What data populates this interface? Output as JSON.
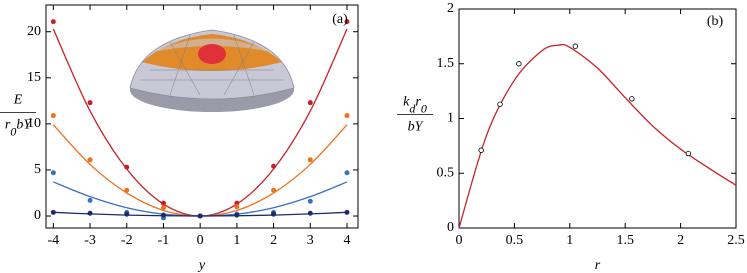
{
  "chart_data": [
    {
      "type": "scatter",
      "panel_label": "(a)",
      "x_label": "y",
      "y_label": {
        "numerator": [
          "E"
        ],
        "denominator": [
          "r",
          "0",
          "bY"
        ]
      },
      "xlim": [
        -4.2,
        4.3
      ],
      "ylim": [
        -1.3,
        22.9
      ],
      "xticks": [
        -4,
        -3,
        -2,
        -1,
        0,
        1,
        2,
        3,
        4
      ],
      "yticks": [
        0,
        5,
        10,
        15,
        20
      ],
      "x": [
        -4,
        -3,
        -2,
        -1,
        0,
        1,
        2,
        3,
        4
      ],
      "series": [
        {
          "color": "#c8202a",
          "values": [
            21.1,
            12.3,
            5.3,
            1.4,
            0,
            1.4,
            5.4,
            12.3,
            21.1
          ],
          "fit": [
            20.3,
            11.4,
            5.1,
            1.3,
            0,
            1.3,
            5.1,
            11.4,
            20.3
          ]
        },
        {
          "color": "#f0701e",
          "values": [
            10.9,
            6.1,
            2.8,
            0.9,
            0,
            1.0,
            2.8,
            6.1,
            10.9
          ],
          "fit": [
            9.9,
            5.6,
            2.5,
            0.6,
            0,
            0.6,
            2.5,
            5.6,
            9.9
          ]
        },
        {
          "color": "#3a6fc4",
          "values": [
            4.7,
            1.7,
            0.4,
            -0.2,
            0,
            0.2,
            0.4,
            1.6,
            4.7
          ],
          "fit": [
            3.7,
            2.1,
            0.9,
            0.2,
            0,
            0.2,
            0.9,
            2.1,
            3.7
          ]
        },
        {
          "color": "#1a2a6a",
          "values": [
            0.4,
            0.3,
            0.2,
            0.1,
            0,
            0.1,
            0.2,
            0.3,
            0.4
          ],
          "fit": [
            0.4,
            0.23,
            0.1,
            0.03,
            0,
            0.03,
            0.1,
            0.23,
            0.4
          ]
        }
      ]
    },
    {
      "type": "scatter",
      "panel_label": "(b)",
      "x_label": "r",
      "y_label": {
        "numerator": [
          "k",
          "d",
          "r",
          "0"
        ],
        "denominator": [
          "bY"
        ]
      },
      "xlim": [
        0,
        2.5
      ],
      "ylim": [
        0,
        2
      ],
      "xticks": [
        0,
        0.5,
        1,
        1.5,
        2,
        2.5
      ],
      "yticks": [
        0,
        0.5,
        1,
        1.5,
        2
      ],
      "x": [
        0.2,
        0.37,
        0.54,
        1.05,
        1.56,
        2.07
      ],
      "fit_x": [
        0,
        0.25,
        0.5,
        0.75,
        0.9,
        1.0,
        1.25,
        1.5,
        1.75,
        2.0,
        2.25,
        2.5
      ],
      "series": [
        {
          "color": "#c8202a",
          "marker": "open",
          "values": [
            0.71,
            1.13,
            1.5,
            1.66,
            1.18,
            0.68
          ],
          "fit": [
            0,
            0.85,
            1.35,
            1.62,
            1.67,
            1.65,
            1.46,
            1.19,
            0.93,
            0.72,
            0.55,
            0.39
          ]
        }
      ]
    }
  ]
}
